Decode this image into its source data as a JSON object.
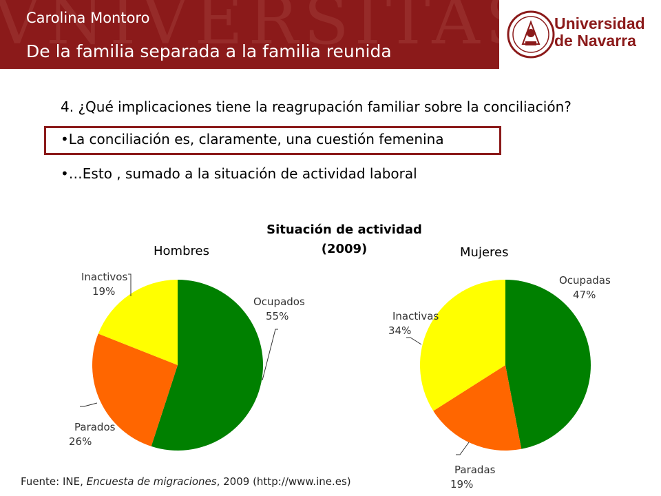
{
  "header": {
    "watermark": "VNIVERSITAS STVDIORVM",
    "author": "Carolina Montoro",
    "subtitle": "De la familia separada a la familia reunida",
    "logo_line1": "Universidad",
    "logo_line2": "de Navarra"
  },
  "content": {
    "question": "4. ¿Qué implicaciones tiene la reagrupación familiar sobre la conciliación?",
    "bullet1": "La conciliación es, claramente, una cuestión femenina",
    "bullet2": "…Esto , sumado a la situación de actividad laboral",
    "bullet_glyph": "•"
  },
  "footer": {
    "prefix": "Fuente: INE, ",
    "source_title": "Encuesta de migraciones",
    "suffix": ", 2009 (http://www.ine.es)"
  },
  "colors": {
    "brand": "#8b1a1a",
    "ocupados": "#008000",
    "parados": "#ff6600",
    "inactivos": "#ffff00"
  },
  "chart_data": {
    "type": "pie",
    "title": "Situación de actividad (2009)",
    "title_line1": "Situación de actividad",
    "title_line2": "(2009)",
    "charts": [
      {
        "name": "Hombres",
        "slices": [
          {
            "label": "Ocupados",
            "value": 55,
            "pct_label": "55%",
            "color": "#008000"
          },
          {
            "label": "Parados",
            "value": 26,
            "pct_label": "26%",
            "color": "#ff6600"
          },
          {
            "label": "Inactivos",
            "value": 19,
            "pct_label": "19%",
            "color": "#ffff00"
          }
        ]
      },
      {
        "name": "Mujeres",
        "slices": [
          {
            "label": "Ocupadas",
            "value": 47,
            "pct_label": "47%",
            "color": "#008000"
          },
          {
            "label": "Paradas",
            "value": 19,
            "pct_label": "19%",
            "color": "#ff6600"
          },
          {
            "label": "Inactivas",
            "value": 34,
            "pct_label": "34%",
            "color": "#ffff00"
          }
        ]
      }
    ]
  }
}
